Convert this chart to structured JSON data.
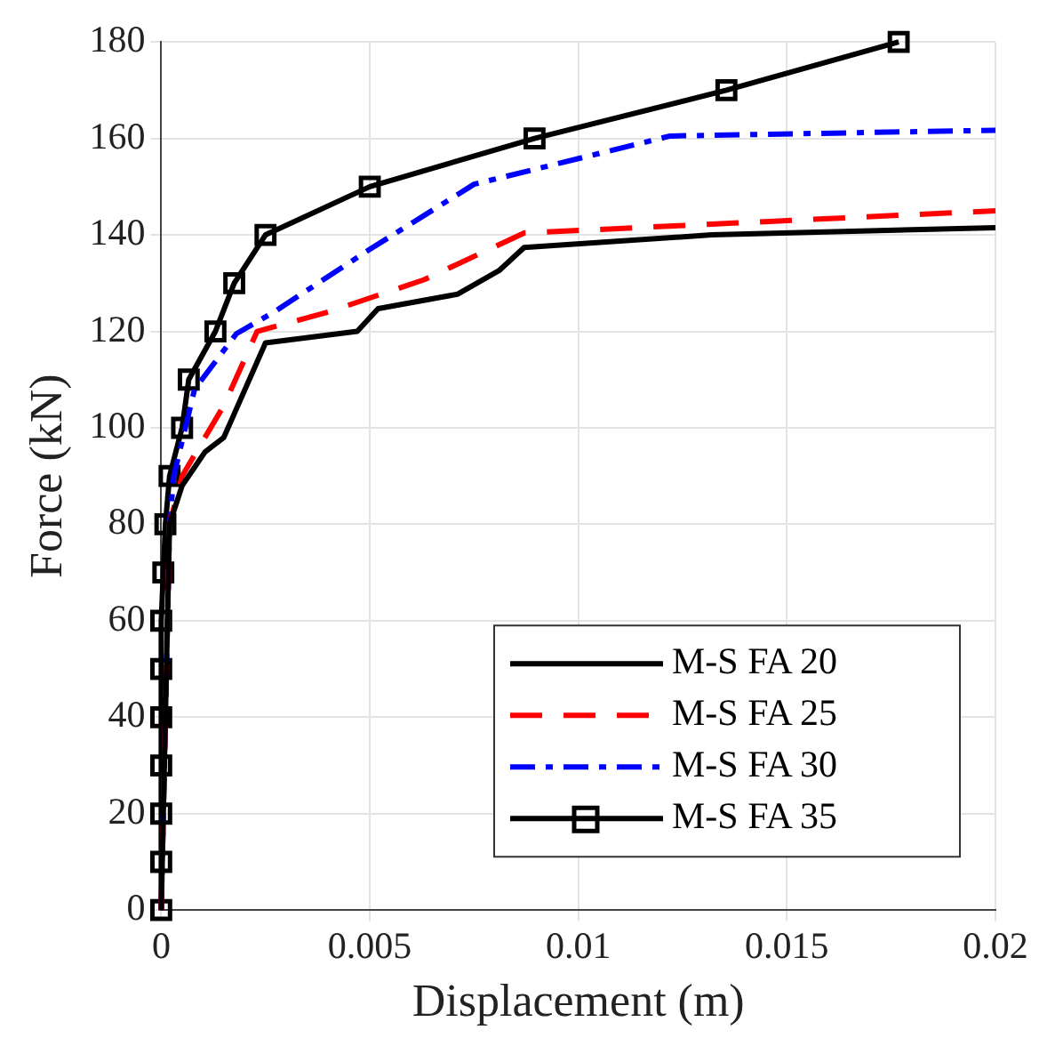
{
  "chart_data": {
    "type": "line",
    "xlabel": "Displacement (m)",
    "ylabel": "Force (kN)",
    "xlim": [
      0,
      0.02
    ],
    "xticks": [
      0,
      0.005,
      0.01,
      0.015,
      0.02
    ],
    "ylim": [
      0,
      180
    ],
    "yticks": [
      0,
      20,
      40,
      60,
      80,
      100,
      120,
      140,
      160,
      180
    ],
    "grid": true,
    "legend": "bottom right",
    "series": [
      {
        "name": "M-S FA 20",
        "color": "#000000",
        "line_style": "solid",
        "marker": "none",
        "x": [
          0,
          0.0002,
          0.0005,
          0.00105,
          0.0015,
          0.0025,
          0.0047,
          0.0052,
          0.0071,
          0.0081,
          0.0087,
          0.0132,
          0.02
        ],
        "values": [
          0,
          80,
          88,
          95,
          98,
          117.6,
          120,
          124.7,
          127.7,
          132.6,
          137.4,
          140,
          141.5
        ]
      },
      {
        "name": "M-S FA 25",
        "color": "#ff0000",
        "line_style": "dashed",
        "marker": "none",
        "x": [
          0,
          0.0002,
          0.0005,
          0.0015,
          0.0023,
          0.004,
          0.0063,
          0.0087,
          0.02
        ],
        "values": [
          0,
          80,
          90,
          104.6,
          120,
          124,
          130.7,
          140.4,
          145
        ]
      },
      {
        "name": "M-S FA 30",
        "color": "#0000ff",
        "line_style": "dashdot",
        "marker": "none",
        "x": [
          0,
          0.0002,
          0.0003,
          0.0008,
          0.0018,
          0.0027,
          0.005,
          0.0075,
          0.0122,
          0.02
        ],
        "values": [
          0,
          80,
          90,
          108,
          119.5,
          124,
          137,
          150.5,
          160.5,
          161.7
        ]
      },
      {
        "name": "M-S FA 35",
        "color": "#000000",
        "line_style": "solid",
        "marker": "square",
        "x": [
          0,
          0,
          0,
          0,
          0,
          0,
          0,
          5e-05,
          0.0001,
          0.0002,
          0.0005,
          0.00066,
          0.0013,
          0.00175,
          0.0025,
          0.005,
          0.00895,
          0.01355,
          0.01768
        ],
        "values": [
          0,
          10,
          20,
          30,
          40,
          50,
          60,
          70,
          80,
          90,
          100,
          110,
          120,
          130,
          140,
          150,
          160,
          170,
          180
        ]
      }
    ]
  }
}
